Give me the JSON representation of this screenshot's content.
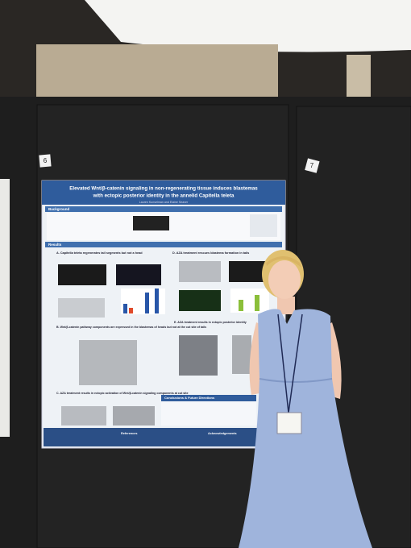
{
  "wall_signs": [
    "6",
    "7"
  ],
  "poster": {
    "title_lines": [
      "Elevated Wnt/β-catenin signaling in non-regenerating tissue induces blastemas",
      "with ectopic posterior identity in the annelid Capitella teleta"
    ],
    "authors": "Lauren Kunselman and Elaine Seaver",
    "sections": {
      "background": "Background",
      "results": "Results",
      "panel_a": "A. Capitella teleta regenerates tail segments but not a head",
      "panel_b": "B. Wnt/β-catenin pathway components are expressed in the blastemas of heads but not at the cut site of tails",
      "panel_c": "C. AZA treatment results in ectopic activation of Wnt/β-catenin signaling components at cut site",
      "panel_d": "D. AZA treatment rescues blastema formation in tails",
      "panel_e": "E. AZA treatment results in ectopic posterior identity",
      "conclusions": "Conclusions & Future Directions",
      "references": "References",
      "acknowledgements": "Acknowledgements"
    }
  }
}
